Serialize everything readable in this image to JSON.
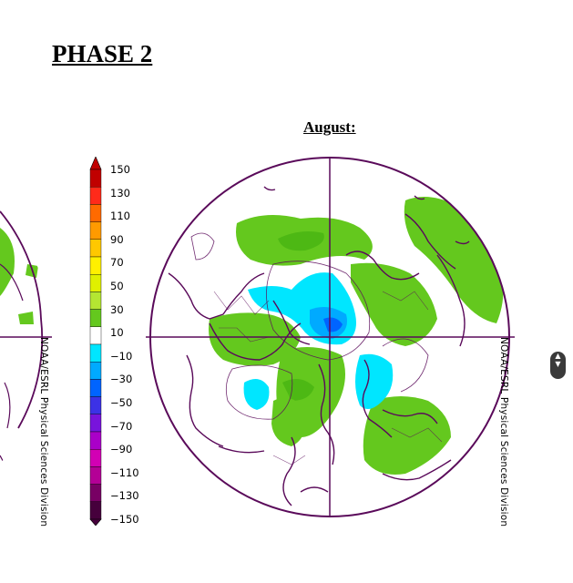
{
  "page": {
    "title": "PHASE 2",
    "month": "August:"
  },
  "credit": {
    "left": "NOAA/ESRL Physical Sciences Division",
    "right": "NOAA/ESRL Physical Sciences Division"
  },
  "colorbar": {
    "ticks": [
      "150",
      "130",
      "110",
      "90",
      "70",
      "50",
      "30",
      "10",
      "−10",
      "−30",
      "−50",
      "−70",
      "−90",
      "−110",
      "−130",
      "−150"
    ],
    "colors": [
      "#c00000",
      "#ff2a1a",
      "#ff6a00",
      "#ff9a00",
      "#ffc800",
      "#fff000",
      "#e0f000",
      "#b4e632",
      "#64c81e",
      "#ffffff",
      "#00e6ff",
      "#00aaff",
      "#0064ff",
      "#3c32e6",
      "#7814dc",
      "#aa00c8",
      "#d200b4",
      "#b40096",
      "#780064",
      "#46003c"
    ],
    "contour_color": "#5a0a5a"
  },
  "scroll_button": {
    "up": "▲",
    "down": "▼"
  }
}
